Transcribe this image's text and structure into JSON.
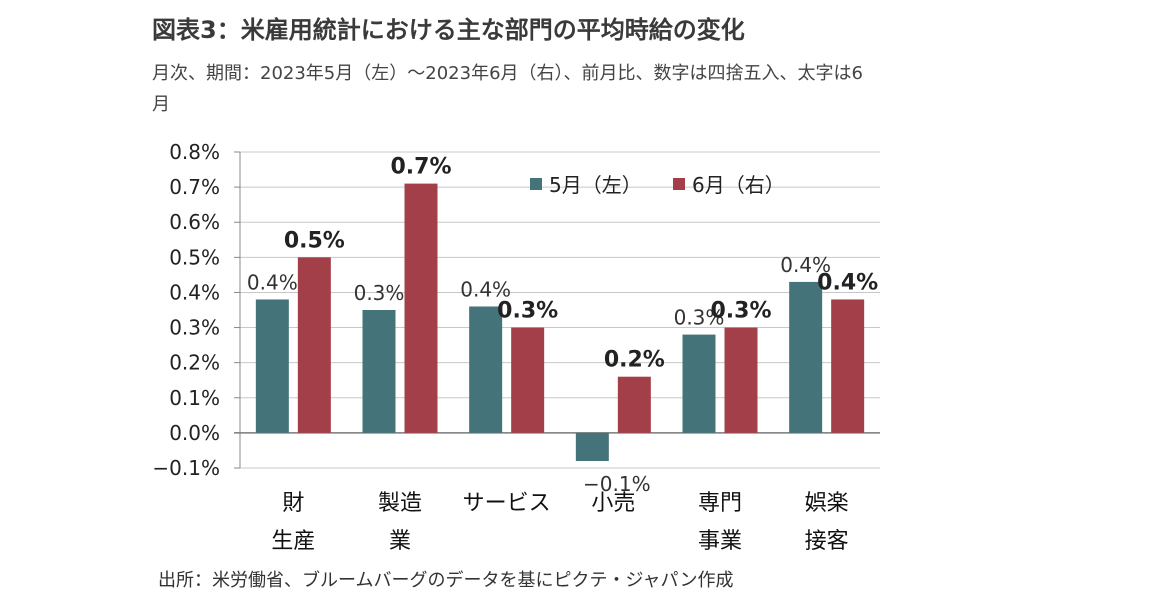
{
  "title": "図表3：米雇用統計における主な部門の平均時給の変化",
  "subtitle": "月次、期間：2023年5月（左）～2023年6月（右）、前月比、数字は四捨五入、太字は6月",
  "source": "出所：米労働省、ブルームバーグのデータを基にピクテ・ジャパン作成",
  "colors": {
    "may": "#44747a",
    "june": "#a33f48",
    "grid": "#c8c8c8",
    "axis": "#888888"
  },
  "chart_data": {
    "type": "bar",
    "categories": [
      [
        "財",
        "生産"
      ],
      [
        "製造",
        "業"
      ],
      [
        "サービス"
      ],
      [
        "小売"
      ],
      [
        "専門",
        "事業"
      ],
      [
        "娯楽",
        "接客"
      ]
    ],
    "series": [
      {
        "name": "5月（左）",
        "values": [
          0.38,
          0.35,
          0.36,
          -0.08,
          0.28,
          0.43
        ],
        "labels": [
          "0.4%",
          "0.3%",
          "0.4%",
          "−0.1%",
          "0.3%",
          "0.4%"
        ]
      },
      {
        "name": "6月（右）",
        "values": [
          0.5,
          0.71,
          0.3,
          0.16,
          0.3,
          0.38
        ],
        "labels": [
          "0.5%",
          "0.7%",
          "0.3%",
          "0.2%",
          "0.3%",
          "0.4%"
        ]
      }
    ],
    "ylim": [
      -0.1,
      0.8
    ],
    "yticks": [
      0.8,
      0.7,
      0.6,
      0.5,
      0.4,
      0.3,
      0.2,
      0.1,
      0.0,
      -0.1
    ],
    "ytick_labels": [
      "0.8%",
      "0.7%",
      "0.6%",
      "0.5%",
      "0.4%",
      "0.3%",
      "0.2%",
      "0.1%",
      "0.0%",
      "−0.1%"
    ],
    "grid": true,
    "legend_position": "top-right"
  }
}
